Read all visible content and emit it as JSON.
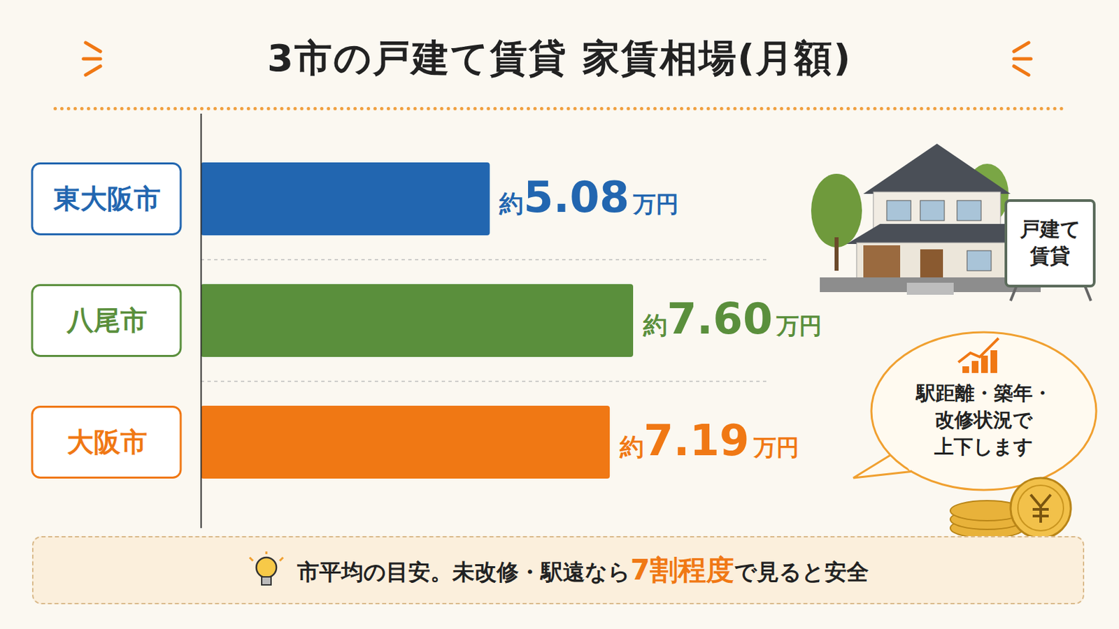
{
  "chart_data": {
    "type": "bar",
    "orientation": "horizontal",
    "title": "3市の戸建て賃貸 家賃相場(月額)",
    "categories": [
      "東大阪市",
      "八尾市",
      "大阪市"
    ],
    "values": [
      5.08,
      7.6,
      7.19
    ],
    "value_labels": [
      "約5.08万円",
      "約7.60万円",
      "約7.19万円"
    ],
    "colors": [
      "#2266b0",
      "#5a8f3c",
      "#f07814"
    ],
    "xlim": [
      0,
      10
    ],
    "xticks": [],
    "grid": false,
    "data_labels": true,
    "tick_labels": "y",
    "annotations": {
      "sign": [
        "戸建て",
        "賃貸"
      ],
      "bubble": [
        "駅距離・築年・",
        "改修状況で",
        "上下します"
      ],
      "footer": [
        "市平均の目安。未改修・駅遠なら",
        "7割程度",
        "で見ると安全"
      ]
    }
  }
}
